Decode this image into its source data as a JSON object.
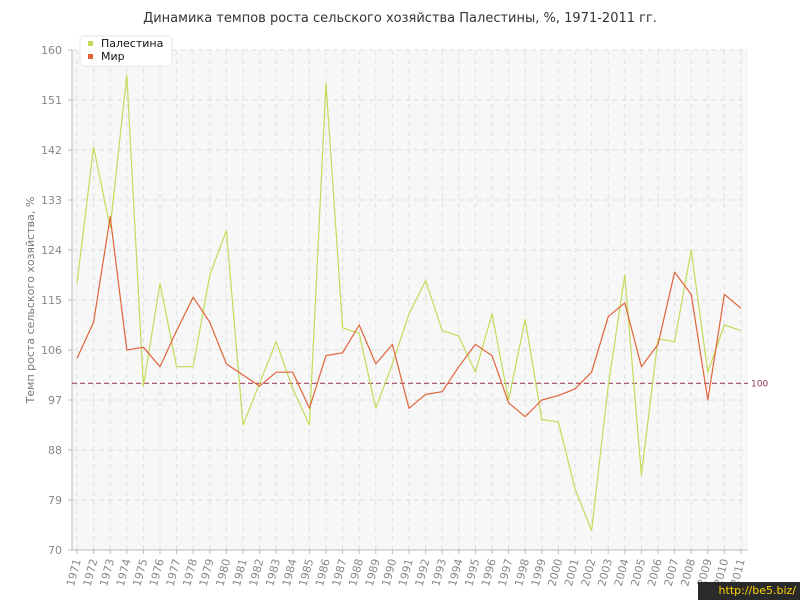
{
  "chart_data": {
    "type": "line",
    "title": "Динамика темпов роста сельского хозяйства Палестины, %, 1971-2011 гг.",
    "ylabel": "Темп роста сельского хозяйства, %",
    "xlabel": "",
    "ylim": [
      70,
      160
    ],
    "yticks": [
      70,
      79,
      88,
      97,
      106,
      115,
      124,
      133,
      142,
      151,
      160
    ],
    "grid": true,
    "legend_position": "top-left",
    "categories": [
      "1971",
      "1972",
      "1973",
      "1974",
      "1975",
      "1976",
      "1977",
      "1978",
      "1979",
      "1980",
      "1981",
      "1982",
      "1983",
      "1984",
      "1985",
      "1986",
      "1987",
      "1988",
      "1989",
      "1990",
      "1991",
      "1992",
      "1993",
      "1994",
      "1995",
      "1996",
      "1997",
      "1998",
      "1999",
      "2000",
      "2001",
      "2002",
      "2003",
      "2004",
      "2005",
      "2006",
      "2007",
      "2008",
      "2009",
      "2010",
      "2011"
    ],
    "series": [
      {
        "name": "Палестина",
        "color": "#c2dc5a",
        "values": [
          118,
          142.5,
          128,
          155.5,
          99.5,
          118,
          103,
          103,
          119.5,
          127.5,
          92.5,
          100,
          107.5,
          99,
          92.5,
          154,
          110,
          109,
          95.5,
          103.5,
          112.5,
          118.5,
          109.5,
          108.5,
          102,
          112.5,
          97,
          111.5,
          93.5,
          93,
          81,
          73.5,
          99.5,
          119.5,
          83.5,
          108,
          107.5,
          124,
          102,
          110.5,
          109.5
        ]
      },
      {
        "name": "Мир",
        "color": "#e0643a",
        "values": [
          104.5,
          111,
          130,
          106,
          106.5,
          103,
          109.5,
          115.5,
          111,
          103.5,
          101.5,
          99.5,
          102,
          102,
          95.5,
          105,
          105.5,
          110.5,
          103.5,
          107,
          95.5,
          98,
          98.5,
          103,
          107,
          105,
          96.5,
          94,
          97,
          97.8,
          99,
          102,
          112,
          114.5,
          103,
          107,
          120,
          116,
          97,
          116,
          113.5
        ]
      }
    ],
    "reference_line": {
      "value": 100,
      "label": "100",
      "color": "#a0485e"
    }
  },
  "watermark": "http://be5.biz/"
}
